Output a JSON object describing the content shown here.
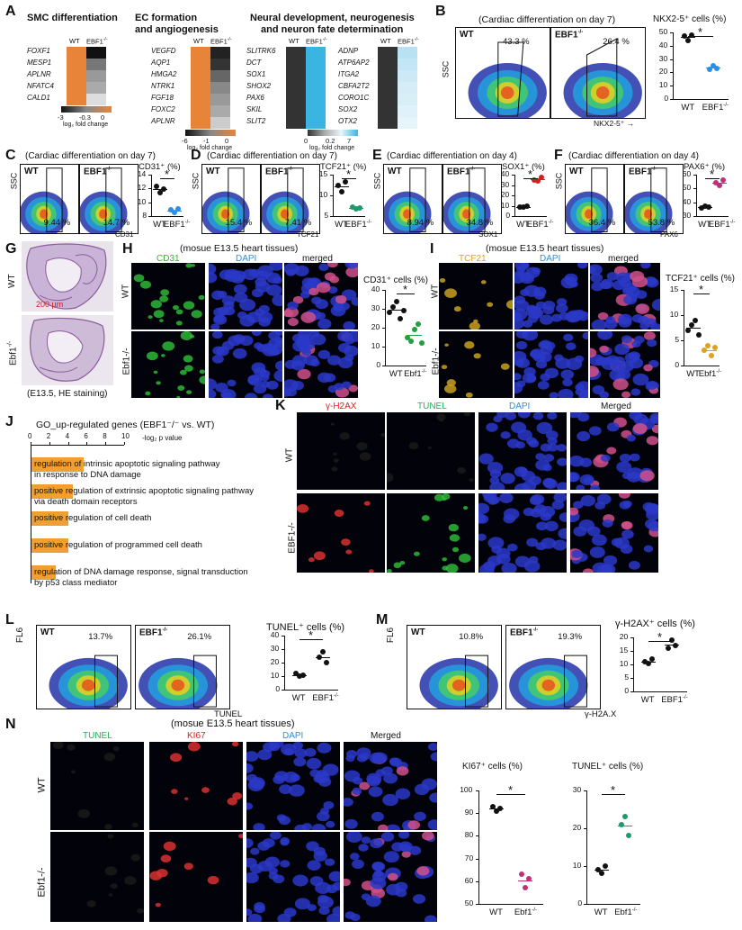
{
  "panels": {
    "A": {
      "label": "A",
      "groups": [
        {
          "title": "SMC differentiation",
          "genes": [
            "FOXF1",
            "MESP1",
            "APLNR",
            "NFATC4",
            "CALD1"
          ]
        },
        {
          "title": "EC formation and angiogenesis",
          "title_line1": "EC formation",
          "title_line2": "and angiogenesis",
          "genes": [
            "VEGFD",
            "AQP1",
            "HMGA2",
            "NTRK1",
            "FGF18",
            "FOXC2",
            "APLNR"
          ]
        },
        {
          "title": "Neural development, neurogenesis and neuron fate determination",
          "title_line1": "Neural development, neurogenesis",
          "title_line2": "and neuron fate determination",
          "genes_left": [
            "SLITRK6",
            "DCT",
            "SOX1",
            "SHOX2",
            "PAX6",
            "SKIL",
            "SLIT2"
          ],
          "genes_right": [
            "ADNP",
            "ATP6AP2",
            "ITGA2",
            "CBFA2T2",
            "CORO1C",
            "SOX2",
            "OTX2"
          ]
        }
      ],
      "col_wt": "WT",
      "col_ebf1": "EBF1",
      "ko_sup": "-/-",
      "scale1_ticks": [
        "-3",
        "-0.3",
        "0"
      ],
      "scale2_ticks": [
        "-6",
        "-1",
        "0"
      ],
      "scale3_ticks": [
        "0",
        "0.2",
        "7"
      ],
      "scale_label": "log₂ fold change",
      "color_orange": "#e8843a",
      "color_blue": "#3ab4e0"
    },
    "B": {
      "label": "B",
      "header": "(Cardiac differentiation on day 7)",
      "wt": "WT",
      "ko": "EBF1",
      "wt_pct": "43.3 %",
      "ko_pct": "26.4 %",
      "y_axis": "SSC",
      "x_axis": "NKX2-5⁺",
      "chart_title": "NKX2-5⁺ cells (%)",
      "ticks": [
        "50",
        "40",
        "30",
        "20",
        "10",
        "0"
      ],
      "star": "*"
    },
    "C": {
      "label": "C",
      "header": "(Cardiac differentiation on day 7)",
      "wt": "WT",
      "ko": "EBF1",
      "wt_pct": "9.44 %",
      "ko_pct": "14.7 %",
      "y_axis": "SSC",
      "x_axis": "CD31",
      "chart_title": "CD31⁺ (%)",
      "ticks": [
        "14",
        "12",
        "10",
        "8"
      ],
      "star": "*"
    },
    "D": {
      "label": "D",
      "header": "(Cardiac differentiation on day 7)",
      "wt": "WT",
      "ko": "EBF1",
      "wt_pct": "15.4 %",
      "ko_pct": "7.41 %",
      "y_axis": "SSC",
      "x_axis": "TCF21",
      "chart_title": "TCF21⁺ (%)",
      "ticks": [
        "15",
        "10",
        "5"
      ],
      "star": "*"
    },
    "E": {
      "label": "E",
      "header": "(Cardiac differentiation on day 4)",
      "wt": "WT",
      "ko": "EBF1",
      "wt_pct": "8.94 %",
      "ko_pct": "34.8 %",
      "y_axis": "SSC",
      "x_axis": "SOX1",
      "chart_title": "SOX1⁺ (%)",
      "ticks": [
        "40",
        "30",
        "20",
        "10",
        "0"
      ],
      "star": "*"
    },
    "F": {
      "label": "F",
      "header": "(Cardiac differentiation on day 4)",
      "wt": "WT",
      "ko": "EBF1",
      "wt_pct": "36.4 %",
      "ko_pct": "53.8 %",
      "y_axis": "SSC",
      "x_axis": "PAX6",
      "chart_title": "PAX6⁺ (%)",
      "ticks": [
        "60",
        "50",
        "40",
        "30"
      ],
      "star": "*"
    },
    "G": {
      "label": "G",
      "wt": "WT",
      "ko": "Ebf1",
      "scale": "200 µm",
      "caption": "(E13.5, HE staining)"
    },
    "H": {
      "label": "H",
      "header": "(mosue E13.5 heart tissues)",
      "ch1": "CD31",
      "ch2": "DAPI",
      "ch3": "merged",
      "wt": "WT",
      "ko": "Ebf1",
      "chart_title": "CD31⁺ cells (%)",
      "ticks": [
        "40",
        "30",
        "20",
        "10",
        "0"
      ],
      "star": "*"
    },
    "I": {
      "label": "I",
      "header": "(mosue E13.5 heart tissues)",
      "ch1": "TCF21",
      "ch2": "DAPI",
      "ch3": "merged",
      "wt": "WT",
      "ko": "Ebf1",
      "chart_title": "TCF21⁺ cells (%)",
      "ticks": [
        "15",
        "10",
        "5",
        "0"
      ],
      "star": "*"
    },
    "J": {
      "label": "J",
      "title": "GO_up-regulated genes (EBF1⁻/⁻ vs. WT)",
      "axis_label": "-log₂ p value",
      "ticks": [
        "0",
        "2",
        "4",
        "6",
        "8",
        "10"
      ],
      "terms": [
        {
          "text": "regulation of intrinsic apoptotic signaling pathway in response to DNA damage",
          "line1": "regulation of intrinsic apoptotic signaling pathway",
          "line2": "in response to DNA damage",
          "value": 5.6
        },
        {
          "text": "positive regulation of extrinsic apoptotic signaling pathway via death domain receptors",
          "line1": "positive regulation of extrinsic apoptotic signaling pathway",
          "line2": "via death domain receptors",
          "value": 4.4
        },
        {
          "text": "positive regulation of cell death",
          "line1": "positive regulation of cell death",
          "line2": "",
          "value": 3.9
        },
        {
          "text": "positive regulation of programmed cell death",
          "line1": "positive regulation of programmed cell death",
          "line2": "",
          "value": 3.9
        },
        {
          "text": "regulation of DNA damage response, signal transduction by p53 class mediator",
          "line1": "regulation of DNA damage response, signal transduction",
          "line2": "by p53 class mediator",
          "value": 2.6
        }
      ]
    },
    "K": {
      "label": "K",
      "ch1": "γ-H2AX",
      "ch2": "TUNEL",
      "ch3": "DAPI",
      "ch4": "Merged",
      "wt": "WT",
      "ko": "EBF1"
    },
    "L": {
      "label": "L",
      "wt": "WT",
      "ko": "EBF1",
      "wt_pct": "13.7%",
      "ko_pct": "26.1%",
      "y_axis": "FL6",
      "x_axis": "TUNEL",
      "chart_title": "TUNEL⁺ cells (%)",
      "ticks": [
        "40",
        "30",
        "20",
        "10",
        "0"
      ],
      "star": "*"
    },
    "M": {
      "label": "M",
      "wt": "WT",
      "ko": "EBF1",
      "wt_pct": "10.8%",
      "ko_pct": "19.3%",
      "y_axis": "FL6",
      "x_axis": "γ-H2A.X",
      "chart_title": "γ-H2AX⁺ cells (%)",
      "ticks": [
        "20",
        "15",
        "10",
        "5",
        "0"
      ],
      "star": "*"
    },
    "N": {
      "label": "N",
      "header": "(mosue E13.5 heart tissues)",
      "ch1": "TUNEL",
      "ch2": "KI67",
      "ch3": "DAPI",
      "ch4": "Merged",
      "wt": "WT",
      "ko": "Ebf1",
      "chart1_title": "KI67⁺ cells (%)",
      "chart2_title": "TUNEL⁺ cells (%)",
      "ticks1": [
        "100",
        "90",
        "80",
        "70",
        "60",
        "50"
      ],
      "ticks2": [
        "30",
        "20",
        "10",
        "0"
      ],
      "star": "*"
    }
  },
  "chart_data": [
    {
      "panel": "B",
      "type": "scatter",
      "title": "NKX2-5⁺ cells (%)",
      "categories": [
        "WT",
        "EBF1⁻/⁻"
      ],
      "ylim": [
        0,
        50
      ],
      "series": [
        {
          "values": [
            [
              47,
              44,
              48
            ],
            [
              22,
              25,
              23
            ]
          ]
        }
      ]
    },
    {
      "panel": "C",
      "type": "scatter",
      "title": "CD31⁺ (%)",
      "categories": [
        "WT",
        "EBF1⁻/⁻"
      ],
      "ylim": [
        8,
        15
      ],
      "series": [
        {
          "values": [
            [
              13,
              12,
              12.5
            ],
            [
              9,
              8.6,
              9.2
            ]
          ]
        }
      ]
    },
    {
      "panel": "D",
      "type": "scatter",
      "title": "TCF21⁺ (%)",
      "categories": [
        "WT",
        "EBF1⁻/⁻"
      ],
      "ylim": [
        5,
        17
      ],
      "series": [
        {
          "values": [
            [
              14,
              12,
              15
            ],
            [
              7.5,
              7,
              7.3
            ]
          ]
        }
      ]
    },
    {
      "panel": "E",
      "type": "scatter",
      "title": "SOX1⁺ (%)",
      "categories": [
        "WT",
        "EBF1⁻/⁻"
      ],
      "ylim": [
        0,
        40
      ],
      "series": [
        {
          "values": [
            [
              9,
              8.5,
              9.5
            ],
            [
              35,
              34,
              37
            ]
          ]
        }
      ]
    },
    {
      "panel": "F",
      "type": "scatter",
      "title": "PAX6⁺ (%)",
      "categories": [
        "WT",
        "EBF1⁻/⁻"
      ],
      "ylim": [
        30,
        60
      ],
      "series": [
        {
          "values": [
            [
              36,
              37,
              36.5
            ],
            [
              54,
              52,
              56
            ]
          ]
        }
      ]
    },
    {
      "panel": "H",
      "type": "scatter",
      "title": "CD31⁺ cells (%)",
      "categories": [
        "WT",
        "Ebf1⁻/⁻"
      ],
      "ylim": [
        0,
        40
      ],
      "series": [
        {
          "values": [
            [
              28,
              31,
              34,
              25,
              29
            ],
            [
              15,
              13,
              19,
              22,
              12
            ]
          ]
        }
      ]
    },
    {
      "panel": "I",
      "type": "scatter",
      "title": "TCF21⁺ cells (%)",
      "categories": [
        "WT",
        "Ebf1⁻/⁻"
      ],
      "ylim": [
        0,
        15
      ],
      "series": [
        {
          "values": [
            [
              7,
              8,
              9,
              6
            ],
            [
              3,
              4,
              2,
              3.5
            ]
          ]
        }
      ]
    },
    {
      "panel": "J",
      "type": "bar",
      "title": "GO_up-regulated genes (EBF1⁻/⁻ vs. WT)",
      "xlabel": "-log₂ p value",
      "xlim": [
        0,
        10
      ],
      "categories": [
        "regulation of intrinsic apoptotic signaling pathway in response to DNA damage",
        "positive regulation of extrinsic apoptotic signaling pathway via death domain receptors",
        "positive regulation of cell death",
        "positive regulation of programmed cell death",
        "regulation of DNA damage response, signal transduction by p53 class mediator"
      ],
      "values": [
        5.6,
        4.4,
        3.9,
        3.9,
        2.6
      ]
    },
    {
      "panel": "L",
      "type": "scatter",
      "title": "TUNEL⁺ cells (%)",
      "categories": [
        "WT",
        "EBF1⁻/⁻"
      ],
      "ylim": [
        0,
        40
      ],
      "series": [
        {
          "values": [
            [
              12,
              10,
              11
            ],
            [
              24,
              28,
              20
            ]
          ]
        }
      ]
    },
    {
      "panel": "M",
      "type": "scatter",
      "title": "γ-H2AX⁺ cells (%)",
      "categories": [
        "WT",
        "EBF1⁻/⁻"
      ],
      "ylim": [
        0,
        20
      ],
      "series": [
        {
          "values": [
            [
              11,
              10.5,
              12
            ],
            [
              16,
              19,
              17
            ]
          ]
        }
      ]
    },
    {
      "panel": "N",
      "type": "scatter",
      "title": "KI67⁺ cells (%)",
      "categories": [
        "WT",
        "Ebf1⁻/⁻"
      ],
      "ylim": [
        50,
        100
      ],
      "series": [
        {
          "values": [
            [
              93,
              91,
              92
            ],
            [
              63,
              57,
              61
            ]
          ]
        }
      ]
    },
    {
      "panel": "N",
      "type": "scatter",
      "title": "TUNEL⁺ cells (%)",
      "categories": [
        "WT",
        "Ebf1⁻/⁻"
      ],
      "ylim": [
        0,
        30
      ],
      "series": [
        {
          "values": [
            [
              9,
              8,
              10
            ],
            [
              21,
              23,
              18
            ]
          ]
        }
      ]
    }
  ]
}
